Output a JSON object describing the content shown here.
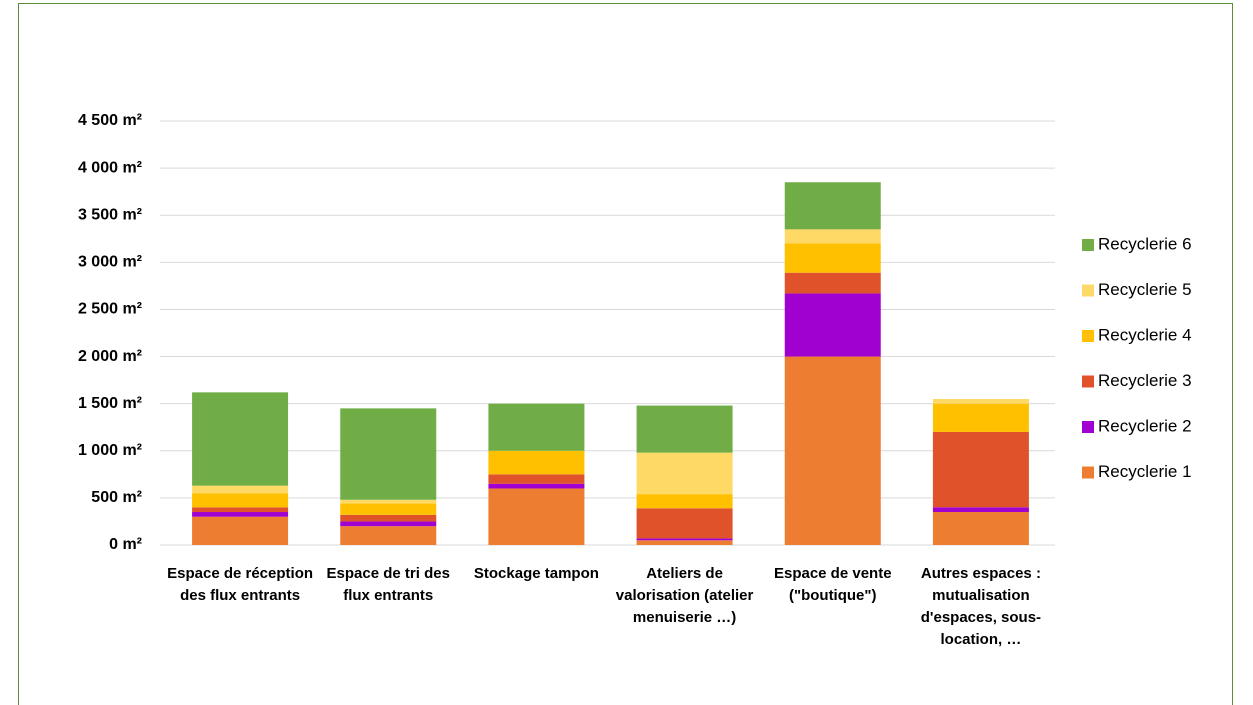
{
  "chart_data": {
    "type": "stacked_bar",
    "categories": [
      "Espace de réception des flux entrants",
      "Espace de tri des flux entrants",
      "Stockage tampon",
      "Ateliers de valorisation (atelier menuiserie …)",
      "Espace de vente (\"boutique\")",
      "Autres espaces : mutualisation d'espaces, sous-location, …"
    ],
    "series": [
      {
        "name": "Recyclerie 1",
        "color": "#ed7d31",
        "values": [
          300,
          200,
          600,
          50,
          2000,
          350
        ]
      },
      {
        "name": "Recyclerie 2",
        "color": "#a000d0",
        "values": [
          50,
          50,
          50,
          20,
          670,
          50
        ]
      },
      {
        "name": "Recyclerie 3",
        "color": "#e0532a",
        "values": [
          50,
          70,
          100,
          320,
          220,
          800
        ]
      },
      {
        "name": "Recyclerie 4",
        "color": "#ffc000",
        "values": [
          150,
          120,
          250,
          150,
          310,
          300
        ]
      },
      {
        "name": "Recyclerie 5",
        "color": "#ffd966",
        "values": [
          80,
          40,
          0,
          440,
          150,
          50
        ]
      },
      {
        "name": "Recyclerie 6",
        "color": "#70ad47",
        "values": [
          990,
          970,
          500,
          500,
          500,
          0
        ]
      }
    ],
    "ylim": [
      0,
      4500
    ],
    "yticks": [
      {
        "value": 0,
        "label": "0 m²"
      },
      {
        "value": 500,
        "label": "500 m²"
      },
      {
        "value": 1000,
        "label": "1 000 m²"
      },
      {
        "value": 1500,
        "label": "1 500 m²"
      },
      {
        "value": 2000,
        "label": "2 000 m²"
      },
      {
        "value": 2500,
        "label": "2 500 m²"
      },
      {
        "value": 3000,
        "label": "3 000 m²"
      },
      {
        "value": 3500,
        "label": "3 500 m²"
      },
      {
        "value": 4000,
        "label": "4 000 m²"
      },
      {
        "value": 4500,
        "label": "4 500 m²"
      }
    ],
    "grid": true,
    "legend": "right"
  }
}
